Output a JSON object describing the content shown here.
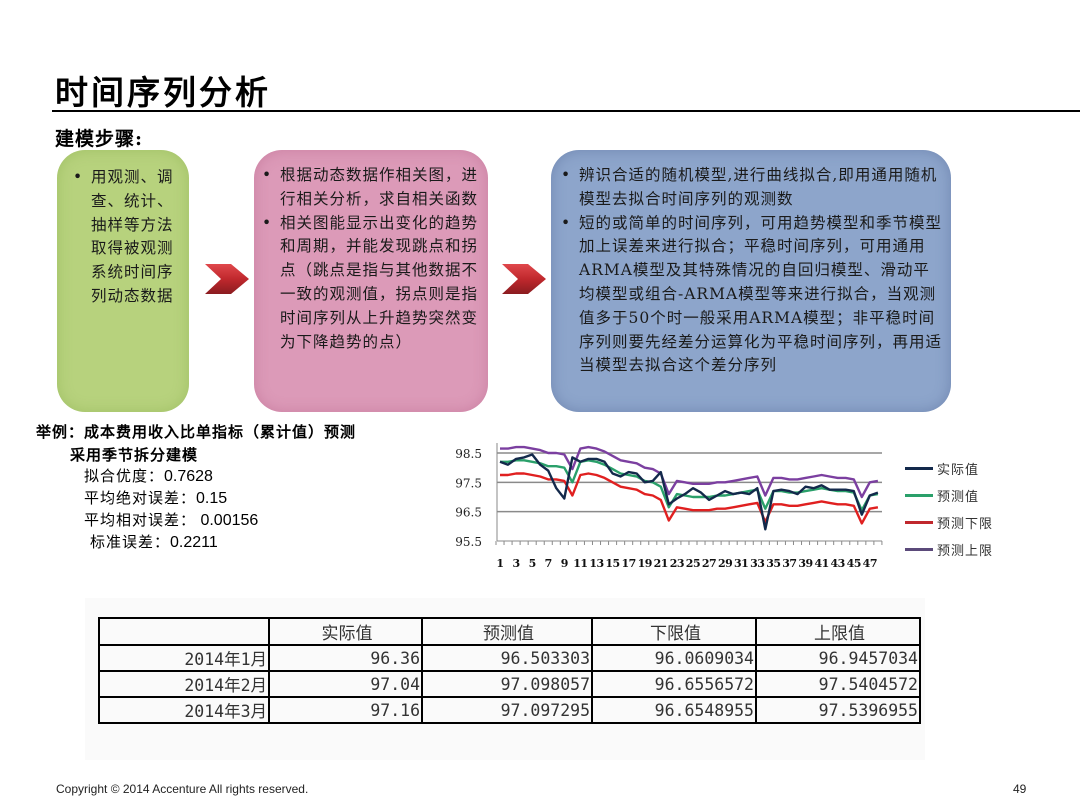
{
  "header": {
    "title": "时间序列分析",
    "subtitle": "建模步骤:"
  },
  "steps": [
    {
      "color": "#b7d27d",
      "bullets": [
        "用观测、调查、统计、抽样等方法取得被观测系统时间序列动态数据"
      ]
    },
    {
      "color": "#dc9ab8",
      "bullets": [
        "根据动态数据作相关图，进行相关分析，求自相关函数",
        "相关图能显示出变化的趋势和周期，并能发现跳点和拐点（跳点是指与其他数据不一致的观测值，拐点则是指时间序列从上升趋势突然变为下降趋势的点）"
      ]
    },
    {
      "color": "#8da5cb",
      "bullets": [
        "辨识合适的随机模型,进行曲线拟合,即用通用随机模型去拟合时间序列的观测数",
        "短的或简单的时间序列，可用趋势模型和季节模型加上误差来进行拟合；平稳时间序列，可用通用ARMA模型及其特殊情况的自回归模型、滑动平均模型或组合-ARMA模型等来进行拟合，当观测值多于50个时一般采用ARMA模型；非平稳时间序列则要先经差分运算化为平稳时间序列，再用适当模型去拟合这个差分序列"
      ]
    }
  ],
  "arrow_color": "#c0282d",
  "example": {
    "line1": "举例：成本费用收入比单指标（累计值）预测",
    "line2": "采用季节拆分建模",
    "stats": [
      {
        "label": "拟合优度：",
        "value": "0.7628"
      },
      {
        "label": "平均绝对误差：",
        "value": "0.15"
      },
      {
        "label": "平均相对误差：",
        "value": " 0.00156"
      },
      {
        "label": "标准误差：",
        "value": "0.2211"
      }
    ]
  },
  "chart_data": {
    "type": "line",
    "title": "",
    "xlabel": "",
    "ylabel": "",
    "ylim": [
      95.5,
      98.5
    ],
    "yticks": [
      "95.5",
      "96.5",
      "97.5",
      "98.5"
    ],
    "xtick_labels": [
      "1",
      "3",
      "5",
      "7",
      "9",
      "11",
      "13",
      "15",
      "17",
      "19",
      "21",
      "23",
      "25",
      "27",
      "29",
      "31",
      "33",
      "35",
      "37",
      "39",
      "41",
      "43",
      "45",
      "47"
    ],
    "grid": "horizontal",
    "legend_position": "right",
    "x": [
      1,
      2,
      3,
      4,
      5,
      6,
      7,
      8,
      9,
      10,
      11,
      12,
      13,
      14,
      15,
      16,
      17,
      18,
      19,
      20,
      21,
      22,
      23,
      24,
      25,
      26,
      27,
      28,
      29,
      30,
      31,
      32,
      33,
      34,
      35,
      36,
      37,
      38,
      39,
      40,
      41,
      42,
      43,
      44,
      45,
      46,
      47,
      48
    ],
    "series": [
      {
        "name": "实际值",
        "color": "#13294b",
        "values": [
          98.2,
          98.1,
          98.3,
          98.35,
          98.45,
          98.1,
          97.9,
          97.3,
          96.95,
          98.35,
          98.2,
          98.3,
          98.3,
          98.2,
          97.8,
          97.7,
          97.85,
          97.8,
          97.5,
          97.55,
          97.85,
          96.75,
          96.95,
          97.1,
          97.3,
          97.15,
          96.9,
          97.05,
          97.2,
          97.1,
          97.15,
          97.1,
          97.3,
          95.9,
          97.2,
          97.25,
          97.2,
          97.1,
          97.35,
          97.3,
          97.4,
          97.25,
          97.25,
          97.25,
          97.2,
          96.4,
          97.05,
          97.15
        ]
      },
      {
        "name": "预测值",
        "color": "#2aa06a",
        "values": [
          98.2,
          98.2,
          98.25,
          98.25,
          98.2,
          98.15,
          98.05,
          98.05,
          98.0,
          97.5,
          98.2,
          98.25,
          98.2,
          98.1,
          97.95,
          97.8,
          97.75,
          97.7,
          97.55,
          97.5,
          97.35,
          96.65,
          97.1,
          97.05,
          97.0,
          97.0,
          97.0,
          97.05,
          97.05,
          97.1,
          97.15,
          97.2,
          97.25,
          96.6,
          97.2,
          97.2,
          97.15,
          97.15,
          97.2,
          97.25,
          97.3,
          97.25,
          97.2,
          97.2,
          97.15,
          96.55,
          97.05,
          97.1
        ]
      },
      {
        "name": "预测下限",
        "color": "#e02020",
        "values": [
          97.75,
          97.75,
          97.8,
          97.8,
          97.75,
          97.7,
          97.6,
          97.6,
          97.55,
          97.05,
          97.75,
          97.8,
          97.75,
          97.65,
          97.5,
          97.35,
          97.3,
          97.25,
          97.1,
          97.05,
          96.9,
          96.2,
          96.65,
          96.6,
          96.55,
          96.55,
          96.55,
          96.6,
          96.6,
          96.65,
          96.7,
          96.75,
          96.8,
          96.15,
          96.75,
          96.75,
          96.7,
          96.7,
          96.75,
          96.8,
          96.85,
          96.8,
          96.75,
          96.75,
          96.7,
          96.1,
          96.6,
          96.65
        ]
      },
      {
        "name": "预测上限",
        "color": "#7b3fa0",
        "values": [
          98.65,
          98.65,
          98.7,
          98.7,
          98.65,
          98.6,
          98.5,
          98.5,
          98.45,
          97.95,
          98.65,
          98.7,
          98.65,
          98.55,
          98.4,
          98.25,
          98.2,
          98.15,
          98.0,
          97.95,
          97.8,
          97.1,
          97.55,
          97.5,
          97.45,
          97.45,
          97.45,
          97.5,
          97.5,
          97.55,
          97.6,
          97.65,
          97.7,
          97.05,
          97.65,
          97.65,
          97.6,
          97.6,
          97.65,
          97.7,
          97.75,
          97.7,
          97.65,
          97.65,
          97.6,
          97.0,
          97.5,
          97.55
        ]
      }
    ]
  },
  "table": {
    "headers": [
      "",
      "实际值",
      "预测值",
      "下限值",
      "上限值"
    ],
    "rows": [
      [
        "2014年1月",
        "96.36",
        "96.503303",
        "96.0609034",
        "96.9457034"
      ],
      [
        "2014年2月",
        "97.04",
        "97.098057",
        "96.6556572",
        "97.5404572"
      ],
      [
        "2014年3月",
        "97.16",
        "97.097295",
        "96.6548955",
        "97.5396955"
      ]
    ]
  },
  "footer": {
    "copyright": "Copyright © 2014  Accenture  All rights reserved.",
    "page": "49"
  }
}
